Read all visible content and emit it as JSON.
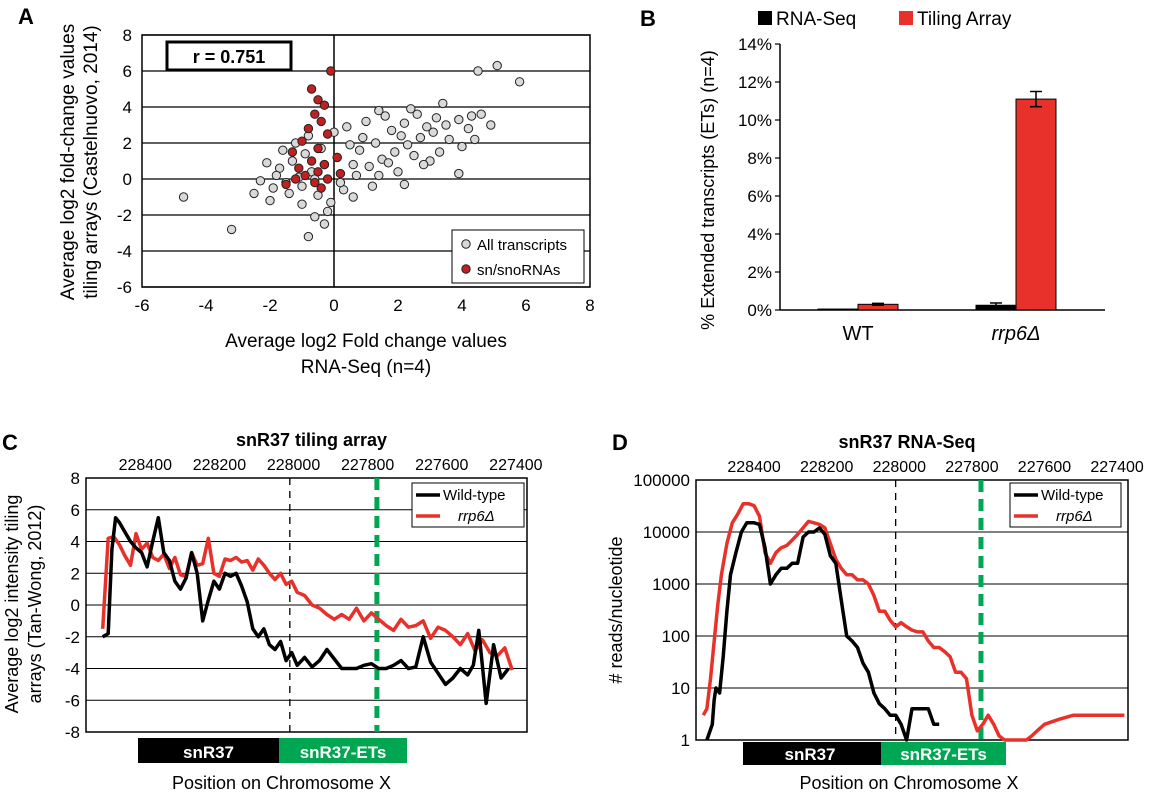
{
  "panels": {
    "A": "A",
    "B": "B",
    "C": "C",
    "D": "D"
  },
  "colors": {
    "black": "#000000",
    "red": "#e8312a",
    "dot_grey": "#d9d9d9",
    "dot_red": "#c0201f",
    "green": "#00a651"
  },
  "chart_data": [
    {
      "id": "A",
      "type": "scatter",
      "xlabel": [
        "Average log2 Fold change values",
        "RNA-Seq (n=4)"
      ],
      "ylabel": [
        "Average log2 fold-change values",
        "tiling arrays (Castelnuovo, 2014)"
      ],
      "xlim": [
        -6,
        8
      ],
      "ylim": [
        -6,
        8
      ],
      "xticks": [
        -6,
        -4,
        -2,
        0,
        2,
        4,
        6,
        8
      ],
      "yticks": [
        -6,
        -4,
        -2,
        0,
        2,
        4,
        6,
        8
      ],
      "annotation": "r = 0.751",
      "legend": [
        "All transcripts",
        "sn/snoRNAs"
      ],
      "legend_position": "bottom-right",
      "series": [
        {
          "name": "All transcripts",
          "points": [
            [
              -4.7,
              -1.0
            ],
            [
              -3.2,
              -2.8
            ],
            [
              -0.8,
              -3.2
            ],
            [
              4.5,
              6.0
            ],
            [
              5.1,
              6.3
            ],
            [
              5.8,
              5.4
            ],
            [
              4.3,
              3.5
            ],
            [
              4.9,
              3.0
            ],
            [
              3.4,
              4.2
            ],
            [
              2.6,
              3.6
            ],
            [
              1.4,
              3.8
            ],
            [
              3.9,
              0.3
            ],
            [
              3.0,
              1.0
            ],
            [
              2.2,
              3.1
            ],
            [
              1.8,
              2.7
            ],
            [
              0.9,
              2.3
            ],
            [
              0.5,
              1.9
            ],
            [
              0.1,
              1.2
            ],
            [
              -0.3,
              0.8
            ],
            [
              -0.7,
              0.4
            ],
            [
              -1.1,
              0.1
            ],
            [
              -1.5,
              -0.2
            ],
            [
              -1.9,
              -0.5
            ],
            [
              -2.3,
              -0.1
            ],
            [
              -1.7,
              0.6
            ],
            [
              -1.3,
              1.0
            ],
            [
              -0.9,
              1.4
            ],
            [
              -0.5,
              -0.9
            ],
            [
              -0.1,
              -1.3
            ],
            [
              0.3,
              -0.6
            ],
            [
              0.7,
              0.2
            ],
            [
              1.1,
              0.7
            ],
            [
              1.5,
              1.1
            ],
            [
              1.9,
              1.5
            ],
            [
              2.3,
              1.9
            ],
            [
              2.7,
              2.3
            ],
            [
              3.1,
              2.6
            ],
            [
              3.5,
              3.0
            ],
            [
              3.9,
              3.3
            ],
            [
              4.2,
              2.8
            ],
            [
              4.6,
              3.6
            ],
            [
              3.3,
              1.5
            ],
            [
              2.8,
              0.8
            ],
            [
              2.0,
              0.4
            ],
            [
              1.2,
              -0.4
            ],
            [
              0.6,
              -1.0
            ],
            [
              -0.2,
              -1.8
            ],
            [
              -0.6,
              -2.1
            ],
            [
              -1.0,
              -1.4
            ],
            [
              -1.4,
              -0.8
            ],
            [
              -1.8,
              0.2
            ],
            [
              -2.1,
              0.9
            ],
            [
              -1.6,
              1.6
            ],
            [
              -1.2,
              2.0
            ],
            [
              -0.8,
              2.4
            ],
            [
              -0.4,
              1.7
            ],
            [
              0.0,
              2.6
            ],
            [
              0.4,
              2.9
            ],
            [
              0.8,
              1.6
            ],
            [
              1.3,
              2.0
            ],
            [
              1.7,
              0.9
            ],
            [
              2.1,
              2.4
            ],
            [
              2.5,
              1.3
            ],
            [
              2.9,
              2.9
            ],
            [
              3.2,
              3.4
            ],
            [
              3.6,
              2.2
            ],
            [
              4.0,
              1.8
            ],
            [
              4.4,
              2.2
            ],
            [
              1.0,
              3.2
            ],
            [
              1.6,
              3.5
            ],
            [
              2.4,
              3.9
            ],
            [
              0.2,
              -0.2
            ],
            [
              -0.6,
              0.0
            ],
            [
              -1.0,
              -0.4
            ],
            [
              0.6,
              0.8
            ],
            [
              1.4,
              0.2
            ],
            [
              2.2,
              -0.3
            ],
            [
              -2.5,
              -0.8
            ],
            [
              -2.0,
              -1.2
            ],
            [
              -0.3,
              -2.5
            ]
          ]
        },
        {
          "name": "sn/snoRNAs",
          "points": [
            [
              -0.1,
              6.0
            ],
            [
              -0.7,
              5.0
            ],
            [
              -0.5,
              4.4
            ],
            [
              -0.3,
              4.1
            ],
            [
              -0.6,
              3.6
            ],
            [
              -0.4,
              3.2
            ],
            [
              -0.8,
              2.8
            ],
            [
              -0.2,
              2.5
            ],
            [
              -1.0,
              2.1
            ],
            [
              -0.5,
              1.7
            ],
            [
              -1.3,
              1.5
            ],
            [
              0.1,
              1.2
            ],
            [
              -0.7,
              1.0
            ],
            [
              -0.3,
              0.8
            ],
            [
              -1.1,
              0.6
            ],
            [
              -0.5,
              0.4
            ],
            [
              -0.9,
              0.2
            ],
            [
              -0.2,
              0.0
            ],
            [
              -0.6,
              -0.2
            ],
            [
              -1.5,
              -0.3
            ],
            [
              -0.4,
              -0.5
            ],
            [
              0.2,
              0.3
            ],
            [
              -1.2,
              0.0
            ]
          ]
        }
      ]
    },
    {
      "id": "B",
      "type": "bar",
      "categories": [
        "WT",
        "rrp6Δ"
      ],
      "ylabel": "% Extended transcripts (ETs) (n=4)",
      "ylim": [
        0,
        14
      ],
      "yticks": [
        "0%",
        "2%",
        "4%",
        "6%",
        "8%",
        "10%",
        "12%",
        "14%"
      ],
      "legend_position": "top",
      "series": [
        {
          "name": "RNA-Seq",
          "values": [
            0.05,
            0.25
          ],
          "errors": [
            0.0,
            0.12
          ]
        },
        {
          "name": "Tiling Array",
          "values": [
            0.3,
            11.1
          ],
          "errors": [
            0.05,
            0.4
          ]
        }
      ]
    },
    {
      "id": "C",
      "type": "line",
      "title": "snR37 tiling array",
      "xlabel": "Position on Chromosome X",
      "ylabel": [
        "Average log2 intensity tiling",
        "arrays (Tan-Wong, 2012)"
      ],
      "x_ticks": [
        "228400",
        "228200",
        "228000",
        "227800",
        "227600",
        "227400"
      ],
      "ylim": [
        -8,
        8
      ],
      "yticks": [
        -8,
        -6,
        -4,
        -2,
        0,
        2,
        4,
        6,
        8
      ],
      "legend": [
        "Wild-type",
        "rrp6Δ"
      ],
      "legend_position": "top-right",
      "regions": [
        "snR37",
        "snR37-ETs"
      ],
      "series": [
        {
          "name": "Wild-type",
          "x": [
            228515,
            228500,
            228490,
            228480,
            228470,
            228455,
            228440,
            228425,
            228410,
            228395,
            228380,
            228365,
            228350,
            228335,
            228320,
            228305,
            228290,
            228275,
            228260,
            228245,
            228230,
            228215,
            228200,
            228185,
            228170,
            228155,
            228140,
            228125,
            228110,
            228095,
            228080,
            228065,
            228050,
            228035,
            228020,
            228005,
            227990,
            227970,
            227950,
            227930,
            227910,
            227890,
            227870,
            227850,
            227830,
            227810,
            227790,
            227770,
            227750,
            227730,
            227710,
            227690,
            227670,
            227650,
            227630,
            227610,
            227590,
            227570,
            227550,
            227530,
            227515,
            227500,
            227480,
            227460,
            227440,
            227420
          ],
          "y": [
            -2,
            -1.8,
            3.5,
            5.5,
            5.2,
            4.6,
            4.0,
            3.6,
            3.3,
            2.4,
            4.0,
            5.5,
            3.3,
            2.8,
            1.5,
            1.0,
            1.7,
            3.3,
            2.0,
            -1.0,
            0.3,
            1.5,
            1.0,
            2.0,
            1.8,
            2.0,
            1.2,
            0.2,
            -1.5,
            -2.0,
            -1.5,
            -2.5,
            -2.8,
            -2.3,
            -3.5,
            -3.0,
            -3.8,
            -3.3,
            -3.9,
            -3.5,
            -2.8,
            -3.4,
            -4.0,
            -4.0,
            -4.0,
            -3.8,
            -3.7,
            -4.0,
            -4.0,
            -3.8,
            -3.5,
            -4.0,
            -3.9,
            -2.0,
            -3.6,
            -4.3,
            -5.0,
            -4.6,
            -4.0,
            -4.4,
            -3.8,
            -1.6,
            -6.2,
            -2.5,
            -4.6,
            -4.0
          ]
        },
        {
          "name": "rrp6Δ",
          "x": [
            228515,
            228500,
            228485,
            228470,
            228455,
            228440,
            228425,
            228410,
            228395,
            228380,
            228365,
            228350,
            228335,
            228320,
            228305,
            228290,
            228275,
            228260,
            228245,
            228230,
            228215,
            228200,
            228185,
            228170,
            228155,
            228140,
            228125,
            228110,
            228095,
            228080,
            228065,
            228050,
            228035,
            228020,
            228005,
            227990,
            227970,
            227950,
            227930,
            227910,
            227890,
            227870,
            227850,
            227830,
            227810,
            227790,
            227770,
            227750,
            227730,
            227710,
            227690,
            227670,
            227650,
            227630,
            227610,
            227590,
            227570,
            227550,
            227530,
            227510,
            227490,
            227470,
            227450,
            227430,
            227410
          ],
          "y": [
            -1.5,
            4.2,
            4.3,
            3.8,
            3.1,
            2.5,
            4.5,
            3.5,
            3.9,
            3.0,
            2.8,
            3.2,
            2.3,
            3.0,
            1.9,
            1.8,
            3.3,
            2.5,
            2.6,
            4.2,
            2.0,
            1.8,
            2.9,
            2.8,
            3.0,
            2.7,
            2.8,
            2.2,
            2.9,
            2.5,
            2.0,
            1.6,
            2.0,
            1.3,
            1.5,
            0.8,
            0.6,
            0.0,
            -0.2,
            -0.6,
            -0.9,
            -0.6,
            -0.9,
            -0.2,
            -1.0,
            -0.5,
            -0.9,
            -1.3,
            -1.6,
            -0.9,
            -1.4,
            -1.3,
            -1.0,
            -2.1,
            -1.4,
            -1.6,
            -2.0,
            -2.5,
            -1.8,
            -2.9,
            -2.2,
            -3.0,
            -3.2,
            -2.7,
            -4.1
          ]
        }
      ]
    },
    {
      "id": "D",
      "type": "line",
      "title": "snR37 RNA-Seq",
      "xlabel": "Position on Chromosome X",
      "ylabel": "# reads/nucleotide",
      "x_ticks": [
        "228400",
        "228200",
        "228000",
        "227800",
        "227600",
        "227400"
      ],
      "yscale": "log",
      "ylim": [
        1,
        100000
      ],
      "yticks": [
        "1",
        "10",
        "100",
        "1000",
        "10000",
        "100000"
      ],
      "legend": [
        "Wild-type",
        "rrp6Δ"
      ],
      "legend_position": "top-right",
      "regions": [
        "snR37",
        "snR37-ETs"
      ],
      "series": [
        {
          "name": "Wild-type",
          "x": [
            228530,
            228515,
            228510,
            228505,
            228495,
            228485,
            228475,
            228465,
            228450,
            228435,
            228420,
            228400,
            228385,
            228370,
            228355,
            228340,
            228325,
            228310,
            228295,
            228280,
            228265,
            228250,
            228235,
            228220,
            228205,
            228190,
            228175,
            228160,
            228145,
            228130,
            228115,
            228100,
            228085,
            228070,
            228055,
            228040,
            228025,
            228010,
            227995,
            227980,
            227965,
            227950,
            227935,
            227920,
            227905,
            227890
          ],
          "y": [
            1,
            2,
            6,
            10,
            8,
            40,
            300,
            1500,
            4000,
            10000,
            15000,
            15000,
            14000,
            5000,
            1000,
            1500,
            2000,
            2000,
            2500,
            2500,
            8000,
            10000,
            10000,
            12000,
            9000,
            3500,
            2500,
            500,
            100,
            80,
            60,
            30,
            20,
            8,
            5,
            4,
            3,
            3,
            2,
            1,
            4,
            4,
            4,
            4,
            2,
            2
          ]
        },
        {
          "name": "rrp6Δ",
          "x": [
            228540,
            228530,
            228520,
            228510,
            228500,
            228490,
            228475,
            228460,
            228445,
            228430,
            228415,
            228400,
            228385,
            228370,
            228355,
            228340,
            228325,
            228310,
            228295,
            228280,
            228265,
            228250,
            228235,
            228220,
            228205,
            228190,
            228175,
            228160,
            228145,
            228130,
            228115,
            228100,
            228085,
            228070,
            228055,
            228040,
            228025,
            228010,
            227995,
            227980,
            227965,
            227950,
            227935,
            227920,
            227905,
            227890,
            227875,
            227860,
            227845,
            227830,
            227815,
            227800,
            227785,
            227770,
            227755,
            227740,
            227725,
            227710,
            227695,
            227680,
            227665,
            227650,
            227635,
            227620,
            227600,
            227560,
            227520,
            227480,
            227440,
            227400,
            227380
          ],
          "y": [
            3,
            4,
            15,
            80,
            400,
            1500,
            6000,
            15000,
            22000,
            35000,
            35000,
            32000,
            20000,
            4000,
            2500,
            4000,
            5000,
            5500,
            7000,
            9000,
            12000,
            16000,
            15000,
            14000,
            12000,
            6000,
            3000,
            2000,
            1500,
            1500,
            1200,
            1200,
            1000,
            600,
            300,
            300,
            200,
            150,
            180,
            150,
            130,
            120,
            120,
            80,
            60,
            60,
            50,
            40,
            20,
            20,
            15,
            3,
            1.5,
            2,
            3,
            2,
            1.2,
            1,
            1,
            1,
            1,
            1,
            1.2,
            1.5,
            2,
            2.5,
            3,
            3,
            3,
            3,
            3
          ]
        }
      ]
    }
  ]
}
